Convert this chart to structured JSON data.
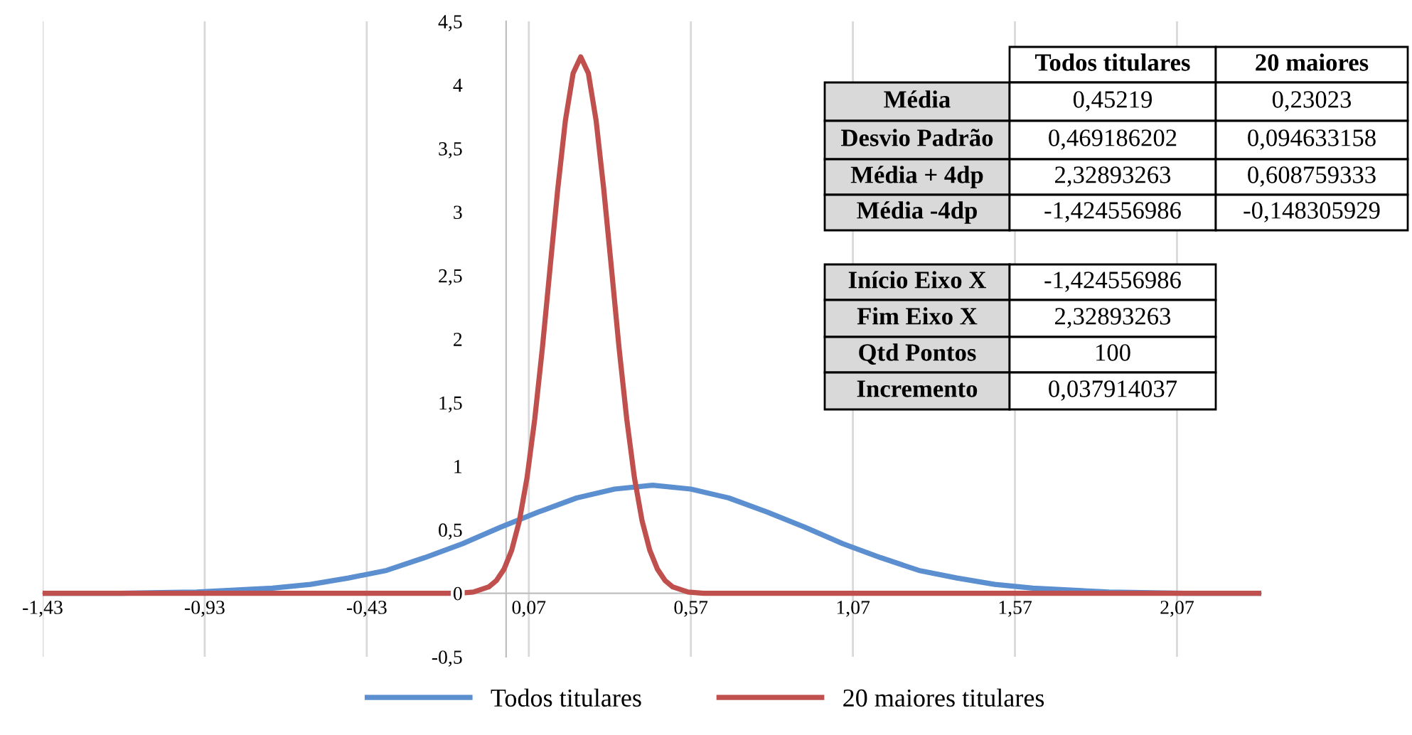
{
  "chart_data": {
    "type": "line",
    "xlim": [
      -1.43,
      2.33
    ],
    "xticks": [
      {
        "value": -1.43,
        "label": "-1,43"
      },
      {
        "value": -0.93,
        "label": "-0,93"
      },
      {
        "value": -0.43,
        "label": "-0,43"
      },
      {
        "value": 0.07,
        "label": "0,07"
      },
      {
        "value": 0.57,
        "label": "0,57"
      },
      {
        "value": 1.07,
        "label": "1,07"
      },
      {
        "value": 1.57,
        "label": "1,57"
      },
      {
        "value": 2.07,
        "label": "2,07"
      }
    ],
    "ylim": [
      -0.5,
      4.5
    ],
    "yticks": [
      {
        "value": -0.5,
        "label": "-0,5"
      },
      0,
      {
        "value": 0.5,
        "label": "0,5"
      },
      1,
      {
        "value": 1.5,
        "label": "1,5"
      },
      2,
      {
        "value": 2.5,
        "label": "2,5"
      },
      3,
      {
        "value": 3.5,
        "label": "3,5"
      },
      4,
      {
        "value": 4.5,
        "label": "4,5"
      }
    ],
    "grid": "x",
    "legend": "bottom",
    "marker": "none",
    "line_style": "solid",
    "series": [
      {
        "name": "Todos titulares",
        "color": "#5b8fd0",
        "x": [
          -1.4246,
          -1.1899,
          -0.9554,
          -0.7208,
          -0.6035,
          -0.4862,
          -0.3689,
          -0.2516,
          -0.1343,
          -0.017,
          0.1003,
          0.2176,
          0.3349,
          0.4522,
          0.5695,
          0.6868,
          0.8041,
          0.9214,
          1.0387,
          1.156,
          1.2733,
          1.3906,
          1.5079,
          1.6251,
          1.8597,
          2.0943,
          2.3289
        ],
        "values": [
          0,
          0,
          0.01,
          0.04,
          0.07,
          0.12,
          0.18,
          0.28,
          0.39,
          0.52,
          0.64,
          0.75,
          0.82,
          0.85,
          0.82,
          0.75,
          0.64,
          0.52,
          0.39,
          0.28,
          0.18,
          0.12,
          0.07,
          0.04,
          0.01,
          0,
          0
        ]
      },
      {
        "name": "20 maiores titulares",
        "color": "#c0504d",
        "x": [
          -1.4246,
          -0.1483,
          -0.101,
          -0.0537,
          -0.03,
          -0.0063,
          0.0173,
          0.041,
          0.0646,
          0.0883,
          0.1119,
          0.1356,
          0.1593,
          0.1829,
          0.2066,
          0.2302,
          0.2539,
          0.2776,
          0.3012,
          0.3249,
          0.3485,
          0.3722,
          0.3958,
          0.4195,
          0.4431,
          0.4668,
          0.4905,
          0.5141,
          0.5614,
          0.6088,
          2.3289
        ],
        "values": [
          0,
          0,
          0.01,
          0.05,
          0.1,
          0.19,
          0.34,
          0.57,
          0.91,
          1.37,
          1.93,
          2.56,
          3.18,
          3.72,
          4.09,
          4.22,
          4.09,
          3.72,
          3.18,
          2.56,
          1.93,
          1.37,
          0.91,
          0.57,
          0.34,
          0.19,
          0.1,
          0.05,
          0.01,
          0,
          0
        ]
      }
    ],
    "annotations": [
      "Todos titulares",
      "20 maiores",
      "Média",
      "0,45219",
      "0,23023",
      "Desvio Padrão",
      "0,469186202",
      "0,094633158",
      "Média + 4dp",
      "2,32893263",
      "0,608759333",
      "Média -4dp",
      "-1,424556986",
      "-0,148305929",
      "Início Eixo X",
      "-1,424556986",
      "Fim Eixo X",
      "2,32893263",
      "Qtd Pontos",
      "100",
      "Incremento",
      "0,037914037"
    ]
  }
}
